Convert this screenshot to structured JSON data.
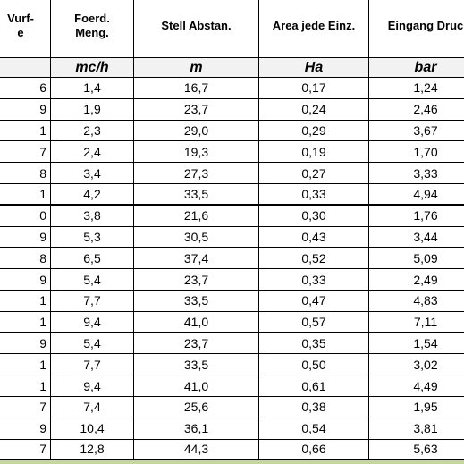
{
  "table": {
    "header": [
      [
        "Vurf-",
        "e"
      ],
      [
        "Foerd.",
        "Meng."
      ],
      [
        "Stell Abstan."
      ],
      [
        "Area jede Einz."
      ],
      [
        "Eingang Druc"
      ]
    ],
    "units": [
      "",
      "mc/h",
      "m",
      "Ha",
      "bar"
    ],
    "rows": [
      [
        "6",
        "1,4",
        "16,7",
        "0,17",
        "1,24"
      ],
      [
        "9",
        "1,9",
        "23,7",
        "0,24",
        "2,46"
      ],
      [
        "1",
        "2,3",
        "29,0",
        "0,29",
        "3,67"
      ],
      [
        "7",
        "2,4",
        "19,3",
        "0,19",
        "1,70"
      ],
      [
        "8",
        "3,4",
        "27,3",
        "0,27",
        "3,33"
      ],
      [
        "1",
        "4,2",
        "33,5",
        "0,33",
        "4,94"
      ],
      [
        "0",
        "3,8",
        "21,6",
        "0,30",
        "1,76"
      ],
      [
        "9",
        "5,3",
        "30,5",
        "0,43",
        "3,44"
      ],
      [
        "8",
        "6,5",
        "37,4",
        "0,52",
        "5,09"
      ],
      [
        "9",
        "5,4",
        "23,7",
        "0,33",
        "2,49"
      ],
      [
        "1",
        "7,7",
        "33,5",
        "0,47",
        "4,83"
      ],
      [
        "1",
        "9,4",
        "41,0",
        "0,57",
        "7,11"
      ],
      [
        "9",
        "5,4",
        "23,7",
        "0,35",
        "1,54"
      ],
      [
        "1",
        "7,7",
        "33,5",
        "0,50",
        "3,02"
      ],
      [
        "1",
        "9,4",
        "41,0",
        "0,61",
        "4,49"
      ],
      [
        "7",
        "7,4",
        "25,6",
        "0,38",
        "1,95"
      ],
      [
        "9",
        "10,4",
        "36,1",
        "0,54",
        "3,81"
      ],
      [
        "7",
        "12,8",
        "44,3",
        "0,66",
        "5,63"
      ]
    ]
  }
}
